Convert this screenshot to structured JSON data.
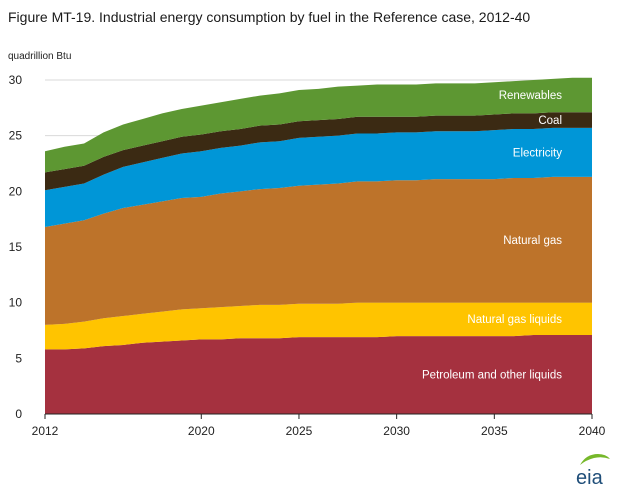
{
  "title": "Figure MT-19. Industrial energy consumption by fuel in the Reference case, 2012-40",
  "chart_data": {
    "type": "area",
    "stacked": true,
    "ylabel": "quadrillion Btu",
    "xlim": [
      2012,
      2040
    ],
    "ylim": [
      0,
      30
    ],
    "x_ticks": [
      2012,
      2020,
      2025,
      2030,
      2035,
      2040
    ],
    "y_ticks": [
      0,
      5,
      10,
      15,
      20,
      25,
      30
    ],
    "x": [
      2012,
      2013,
      2014,
      2015,
      2016,
      2017,
      2018,
      2019,
      2020,
      2021,
      2022,
      2023,
      2024,
      2025,
      2026,
      2027,
      2028,
      2029,
      2030,
      2031,
      2032,
      2033,
      2034,
      2035,
      2036,
      2037,
      2038,
      2039,
      2040
    ],
    "series": [
      {
        "name": "Petroleum and other liquids",
        "color": "#a5313f",
        "values": [
          5.8,
          5.8,
          5.9,
          6.1,
          6.2,
          6.4,
          6.5,
          6.6,
          6.7,
          6.7,
          6.8,
          6.8,
          6.8,
          6.9,
          6.9,
          6.9,
          6.9,
          6.9,
          7.0,
          7.0,
          7.0,
          7.0,
          7.0,
          7.0,
          7.0,
          7.1,
          7.1,
          7.1,
          7.1
        ]
      },
      {
        "name": "Natural gas liquids",
        "color": "#ffc400",
        "values": [
          2.2,
          2.3,
          2.4,
          2.5,
          2.6,
          2.6,
          2.7,
          2.8,
          2.8,
          2.9,
          2.9,
          3.0,
          3.0,
          3.0,
          3.0,
          3.0,
          3.1,
          3.1,
          3.0,
          3.0,
          3.0,
          3.0,
          3.0,
          3.0,
          3.0,
          2.9,
          2.9,
          2.9,
          2.9
        ]
      },
      {
        "name": "Natural gas",
        "color": "#bd732a",
        "values": [
          8.8,
          9.0,
          9.1,
          9.4,
          9.7,
          9.8,
          9.9,
          10.0,
          10.0,
          10.2,
          10.3,
          10.4,
          10.5,
          10.6,
          10.7,
          10.8,
          10.9,
          10.9,
          11.0,
          11.0,
          11.1,
          11.1,
          11.1,
          11.1,
          11.2,
          11.2,
          11.3,
          11.3,
          11.3
        ]
      },
      {
        "name": "Electricity",
        "color": "#0096d7",
        "values": [
          3.3,
          3.3,
          3.3,
          3.5,
          3.7,
          3.8,
          3.9,
          4.0,
          4.1,
          4.1,
          4.1,
          4.2,
          4.2,
          4.3,
          4.3,
          4.3,
          4.3,
          4.3,
          4.3,
          4.3,
          4.3,
          4.3,
          4.3,
          4.4,
          4.4,
          4.4,
          4.4,
          4.4,
          4.4
        ]
      },
      {
        "name": "Coal",
        "color": "#3b2a13",
        "values": [
          1.6,
          1.6,
          1.6,
          1.6,
          1.5,
          1.5,
          1.5,
          1.5,
          1.5,
          1.5,
          1.5,
          1.5,
          1.5,
          1.5,
          1.5,
          1.5,
          1.5,
          1.5,
          1.4,
          1.4,
          1.4,
          1.4,
          1.4,
          1.4,
          1.4,
          1.4,
          1.4,
          1.4,
          1.4
        ]
      },
      {
        "name": "Renewables",
        "color": "#5d9732",
        "values": [
          1.9,
          2.0,
          2.0,
          2.2,
          2.3,
          2.4,
          2.5,
          2.5,
          2.6,
          2.6,
          2.7,
          2.7,
          2.8,
          2.8,
          2.8,
          2.9,
          2.8,
          2.9,
          2.9,
          2.9,
          2.9,
          2.9,
          2.9,
          2.9,
          2.9,
          3.0,
          3.0,
          3.1,
          3.1
        ]
      }
    ]
  },
  "logo": {
    "text": "eia"
  }
}
